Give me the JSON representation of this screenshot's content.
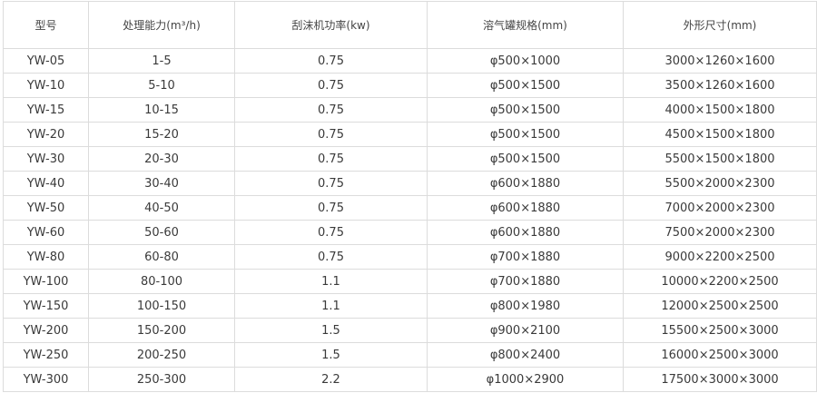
{
  "table": {
    "headers": [
      "型号",
      "处理能力(m³/h)",
      "刮沫机功率(kw)",
      "溶气罐规格(mm)",
      "外形尺寸(mm)"
    ],
    "rows": [
      [
        "YW-05",
        "1-5",
        "0.75",
        "φ500×1000",
        "3000×1260×1600"
      ],
      [
        "YW-10",
        "5-10",
        "0.75",
        "φ500×1500",
        "3500×1260×1600"
      ],
      [
        "YW-15",
        "10-15",
        "0.75",
        "φ500×1500",
        "4000×1500×1800"
      ],
      [
        "YW-20",
        "15-20",
        "0.75",
        "φ500×1500",
        "4500×1500×1800"
      ],
      [
        "YW-30",
        "20-30",
        "0.75",
        "φ500×1500",
        "5500×1500×1800"
      ],
      [
        "YW-40",
        "30-40",
        "0.75",
        "φ600×1880",
        "5500×2000×2300"
      ],
      [
        "YW-50",
        "40-50",
        "0.75",
        "φ600×1880",
        "7000×2000×2300"
      ],
      [
        "YW-60",
        "50-60",
        "0.75",
        "φ600×1880",
        "7500×2000×2300"
      ],
      [
        "YW-80",
        "60-80",
        "0.75",
        "φ700×1880",
        "9000×2200×2500"
      ],
      [
        "YW-100",
        "80-100",
        "1.1",
        "φ700×1880",
        "10000×2200×2500"
      ],
      [
        "YW-150",
        "100-150",
        "1.1",
        "φ800×1980",
        "12000×2500×2500"
      ],
      [
        "YW-200",
        "150-200",
        "1.5",
        "φ900×2100",
        "15500×2500×3000"
      ],
      [
        "YW-250",
        "200-250",
        "1.5",
        "φ800×2400",
        "16000×2500×3000"
      ],
      [
        "YW-300",
        "250-300",
        "2.2",
        "φ1000×2900",
        "17500×3000×3000"
      ]
    ]
  }
}
